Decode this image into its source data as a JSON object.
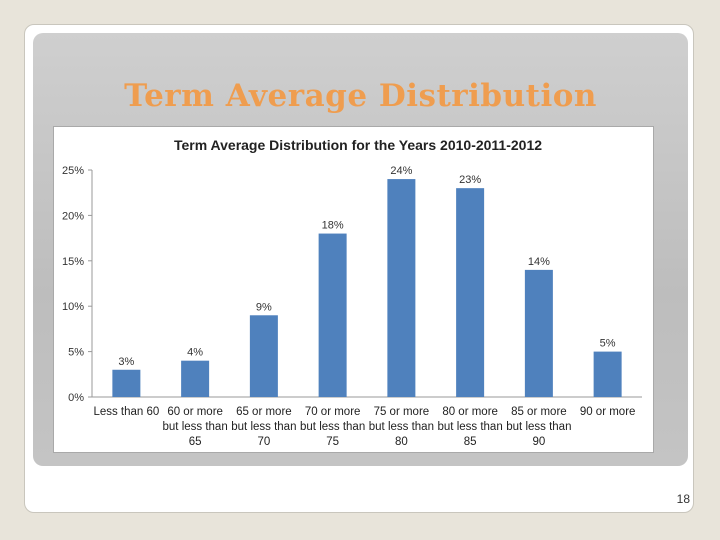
{
  "slide": {
    "title": "Term Average Distribution",
    "page_number": "18"
  },
  "colors": {
    "bar": "#4f81bd",
    "title": "#ef9d4f",
    "axis": "#999999"
  },
  "chart_data": {
    "type": "bar",
    "title": "Term Average Distribution for the Years 2010-2011-2012",
    "categories": [
      [
        "Less than 60"
      ],
      [
        "60 or more",
        "but less than",
        "65"
      ],
      [
        "65 or more",
        "but less than",
        "70"
      ],
      [
        "70 or more",
        "but less than",
        "75"
      ],
      [
        "75 or more",
        "but less than",
        "80"
      ],
      [
        "80 or more",
        "but less than",
        "85"
      ],
      [
        "85 or more",
        "but less than",
        "90"
      ],
      [
        "90 or more"
      ]
    ],
    "values": [
      3,
      4,
      9,
      18,
      24,
      23,
      14,
      5
    ],
    "data_labels": [
      "3%",
      "4%",
      "9%",
      "18%",
      "24%",
      "23%",
      "14%",
      "5%"
    ],
    "yticks": [
      0,
      5,
      10,
      15,
      20,
      25
    ],
    "ytick_labels": [
      "0%",
      "5%",
      "10%",
      "15%",
      "20%",
      "25%"
    ],
    "ylim": [
      0,
      25
    ],
    "xlabel": "",
    "ylabel": "",
    "grid": false,
    "legend": "none"
  }
}
